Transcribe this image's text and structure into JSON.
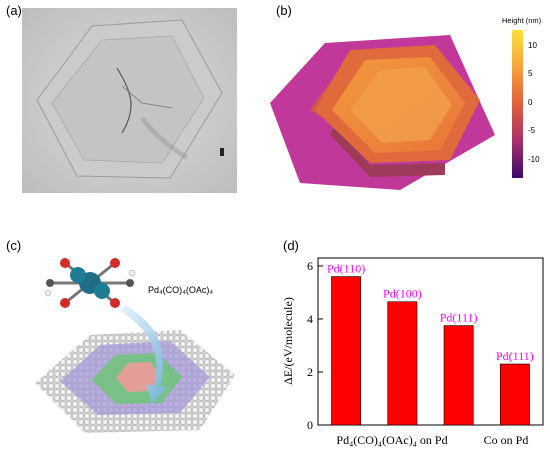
{
  "figure": {
    "panel_a": {
      "label": "(a)"
    },
    "panel_b": {
      "label": "(b)",
      "colorbar": {
        "title": "Height (nm)",
        "ticks": [
          "10",
          "5",
          "0",
          "-5",
          "-10"
        ]
      }
    },
    "panel_c": {
      "label": "(c)",
      "molecule_formula": "Pd₄(CO)₄(OAc)₄"
    },
    "panel_d": {
      "label": "(d)"
    }
  },
  "chart_data": {
    "type": "bar",
    "ylabel": "ΔE/(eV/molecule)",
    "ylim": [
      0,
      6.3
    ],
    "yticks": [
      0,
      2,
      4,
      6
    ],
    "group_labels": [
      "Pd₄(CO)₄(OAc)₄ on Pd",
      "Co on Pd"
    ],
    "categories": [
      "Pd(110)",
      "Pd(100)",
      "Pd(111)",
      "Pd(111)"
    ],
    "values": [
      5.6,
      4.65,
      3.75,
      2.3
    ],
    "bar_color": "#ff0000",
    "label_color": "#ff00ff"
  }
}
